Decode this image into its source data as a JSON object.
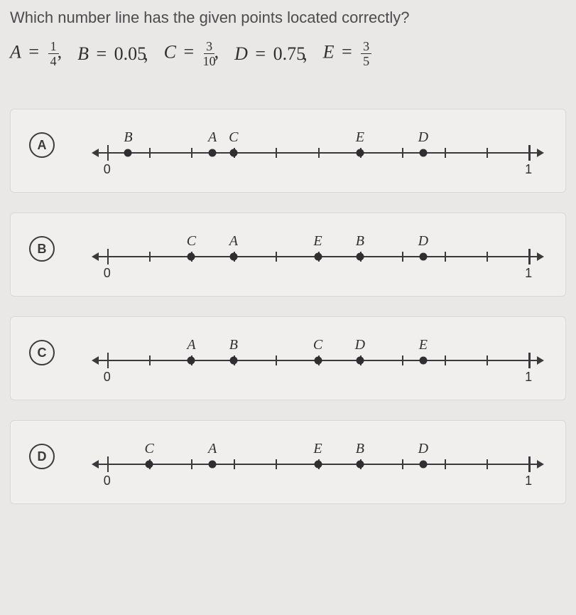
{
  "question": "Which number line has the given points located correctly?",
  "definitions": [
    {
      "name": "A",
      "type": "frac",
      "num": "1",
      "den": "4"
    },
    {
      "name": "B",
      "type": "dec",
      "value": "0.05"
    },
    {
      "name": "C",
      "type": "frac",
      "num": "3",
      "den": "10"
    },
    {
      "name": "D",
      "type": "dec",
      "value": "0.75"
    },
    {
      "name": "E",
      "type": "frac",
      "num": "3",
      "den": "5"
    }
  ],
  "axis": {
    "start_pct": 4,
    "end_pct": 96,
    "ticks": [
      0,
      0.1,
      0.2,
      0.3,
      0.4,
      0.5,
      0.6,
      0.7,
      0.8,
      0.9,
      1.0
    ],
    "major": [
      0,
      1.0
    ],
    "labels": [
      {
        "at": 0,
        "text": "0"
      },
      {
        "at": 1.0,
        "text": "1"
      }
    ]
  },
  "options": [
    {
      "id": "A",
      "points": [
        {
          "label": "B",
          "at": 0.05
        },
        {
          "label": "A",
          "at": 0.25
        },
        {
          "label": "C",
          "at": 0.3
        },
        {
          "label": "E",
          "at": 0.6
        },
        {
          "label": "D",
          "at": 0.75
        }
      ]
    },
    {
      "id": "B",
      "points": [
        {
          "label": "C",
          "at": 0.2
        },
        {
          "label": "A",
          "at": 0.3
        },
        {
          "label": "E",
          "at": 0.5
        },
        {
          "label": "B",
          "at": 0.6
        },
        {
          "label": "D",
          "at": 0.75
        }
      ]
    },
    {
      "id": "C",
      "points": [
        {
          "label": "A",
          "at": 0.2
        },
        {
          "label": "B",
          "at": 0.3
        },
        {
          "label": "C",
          "at": 0.5
        },
        {
          "label": "D",
          "at": 0.6
        },
        {
          "label": "E",
          "at": 0.75
        }
      ]
    },
    {
      "id": "D",
      "points": [
        {
          "label": "C",
          "at": 0.1
        },
        {
          "label": "A",
          "at": 0.25
        },
        {
          "label": "E",
          "at": 0.5
        },
        {
          "label": "B",
          "at": 0.6
        },
        {
          "label": "D",
          "at": 0.75
        }
      ]
    }
  ],
  "colors": {
    "page_bg": "#e9e8e6",
    "card_bg": "#f0efed",
    "card_border": "#d7d6d2",
    "text": "#3a3a3c",
    "ink": "#2f2f31"
  }
}
